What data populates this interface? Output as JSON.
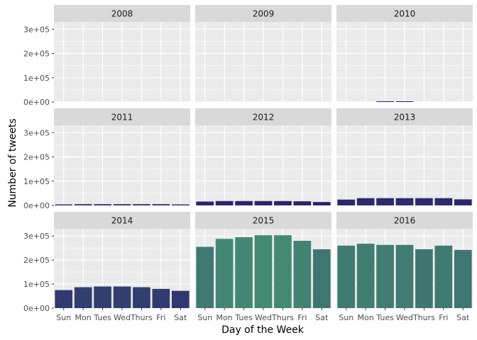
{
  "chart_data": {
    "type": "bar",
    "layout": "facet-grid",
    "xlabel": "Day of the Week",
    "ylabel": "Number of tweets",
    "ylim": [
      0,
      330000
    ],
    "ytick_values": [
      0,
      100000,
      200000,
      300000
    ],
    "ytick_labels": [
      "0e+00",
      "1e+05",
      "2e+05",
      "3e+05"
    ],
    "categories": [
      "Sun",
      "Mon",
      "Tues",
      "Wed",
      "Thurs",
      "Fri",
      "Sat"
    ],
    "grid": true,
    "legend": "none",
    "colors": {
      "panel_bg": "#ebebeb",
      "strip_bg": "#d9d9d9",
      "grid": "#ffffff",
      "fill_low": "#2a1f6e",
      "fill_high": "#448b73"
    },
    "facets": [
      {
        "label": "2008",
        "values": [
          0,
          0,
          0,
          0,
          0,
          0,
          0
        ]
      },
      {
        "label": "2009",
        "values": [
          0,
          0,
          0,
          0,
          0,
          0,
          0
        ]
      },
      {
        "label": "2010",
        "values": [
          0,
          0,
          300,
          300,
          0,
          0,
          0
        ]
      },
      {
        "label": "2011",
        "values": [
          4000,
          5000,
          5000,
          5000,
          5000,
          5000,
          4000
        ]
      },
      {
        "label": "2012",
        "values": [
          16000,
          18000,
          18000,
          18000,
          18000,
          17000,
          14000
        ]
      },
      {
        "label": "2013",
        "values": [
          24000,
          30000,
          30000,
          30000,
          30000,
          30000,
          25000
        ]
      },
      {
        "label": "2014",
        "values": [
          75000,
          87000,
          90000,
          90000,
          87000,
          80000,
          72000
        ]
      },
      {
        "label": "2015",
        "values": [
          255000,
          288000,
          295000,
          303000,
          303000,
          280000,
          245000
        ]
      },
      {
        "label": "2016",
        "values": [
          260000,
          268000,
          263000,
          263000,
          245000,
          260000,
          242000
        ]
      }
    ]
  }
}
